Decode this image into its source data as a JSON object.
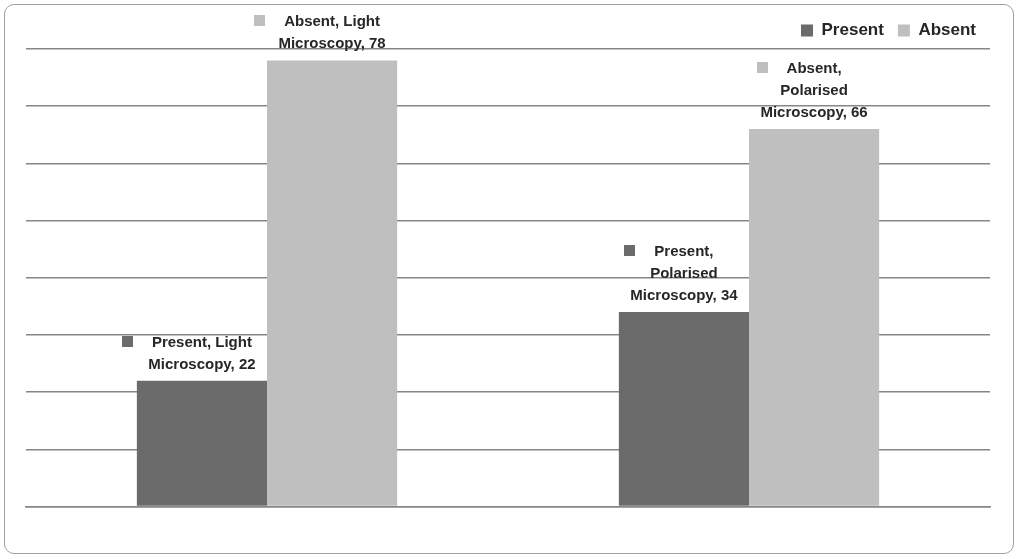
{
  "chart_data": {
    "type": "bar",
    "categories": [
      null,
      null
    ],
    "series": [
      {
        "name": "Present",
        "color": "#6b6b6b",
        "values": [
          22,
          34
        ],
        "value_labels": [
          "Present, Light Microscopy, 22",
          "Present, Polarised Microscopy, 34"
        ]
      },
      {
        "name": "Absent",
        "color": "#bfbfbf",
        "values": [
          78,
          66
        ],
        "value_labels": [
          "Absent, Light Microscopy, 78",
          "Absent, Polarised Microscopy, 66"
        ]
      }
    ],
    "ylim": [
      0,
      80
    ],
    "yticks": [
      {
        "value": 0,
        "label": null
      },
      {
        "value": 10,
        "label": null
      },
      {
        "value": 20,
        "label": null
      },
      {
        "value": 30,
        "label": null
      },
      {
        "value": 40,
        "label": null
      },
      {
        "value": 50,
        "label": null
      },
      {
        "value": 60,
        "label": null
      },
      {
        "value": 70,
        "label": null
      },
      {
        "value": 80,
        "label": null
      }
    ],
    "grid": "y",
    "legend": "top right"
  }
}
